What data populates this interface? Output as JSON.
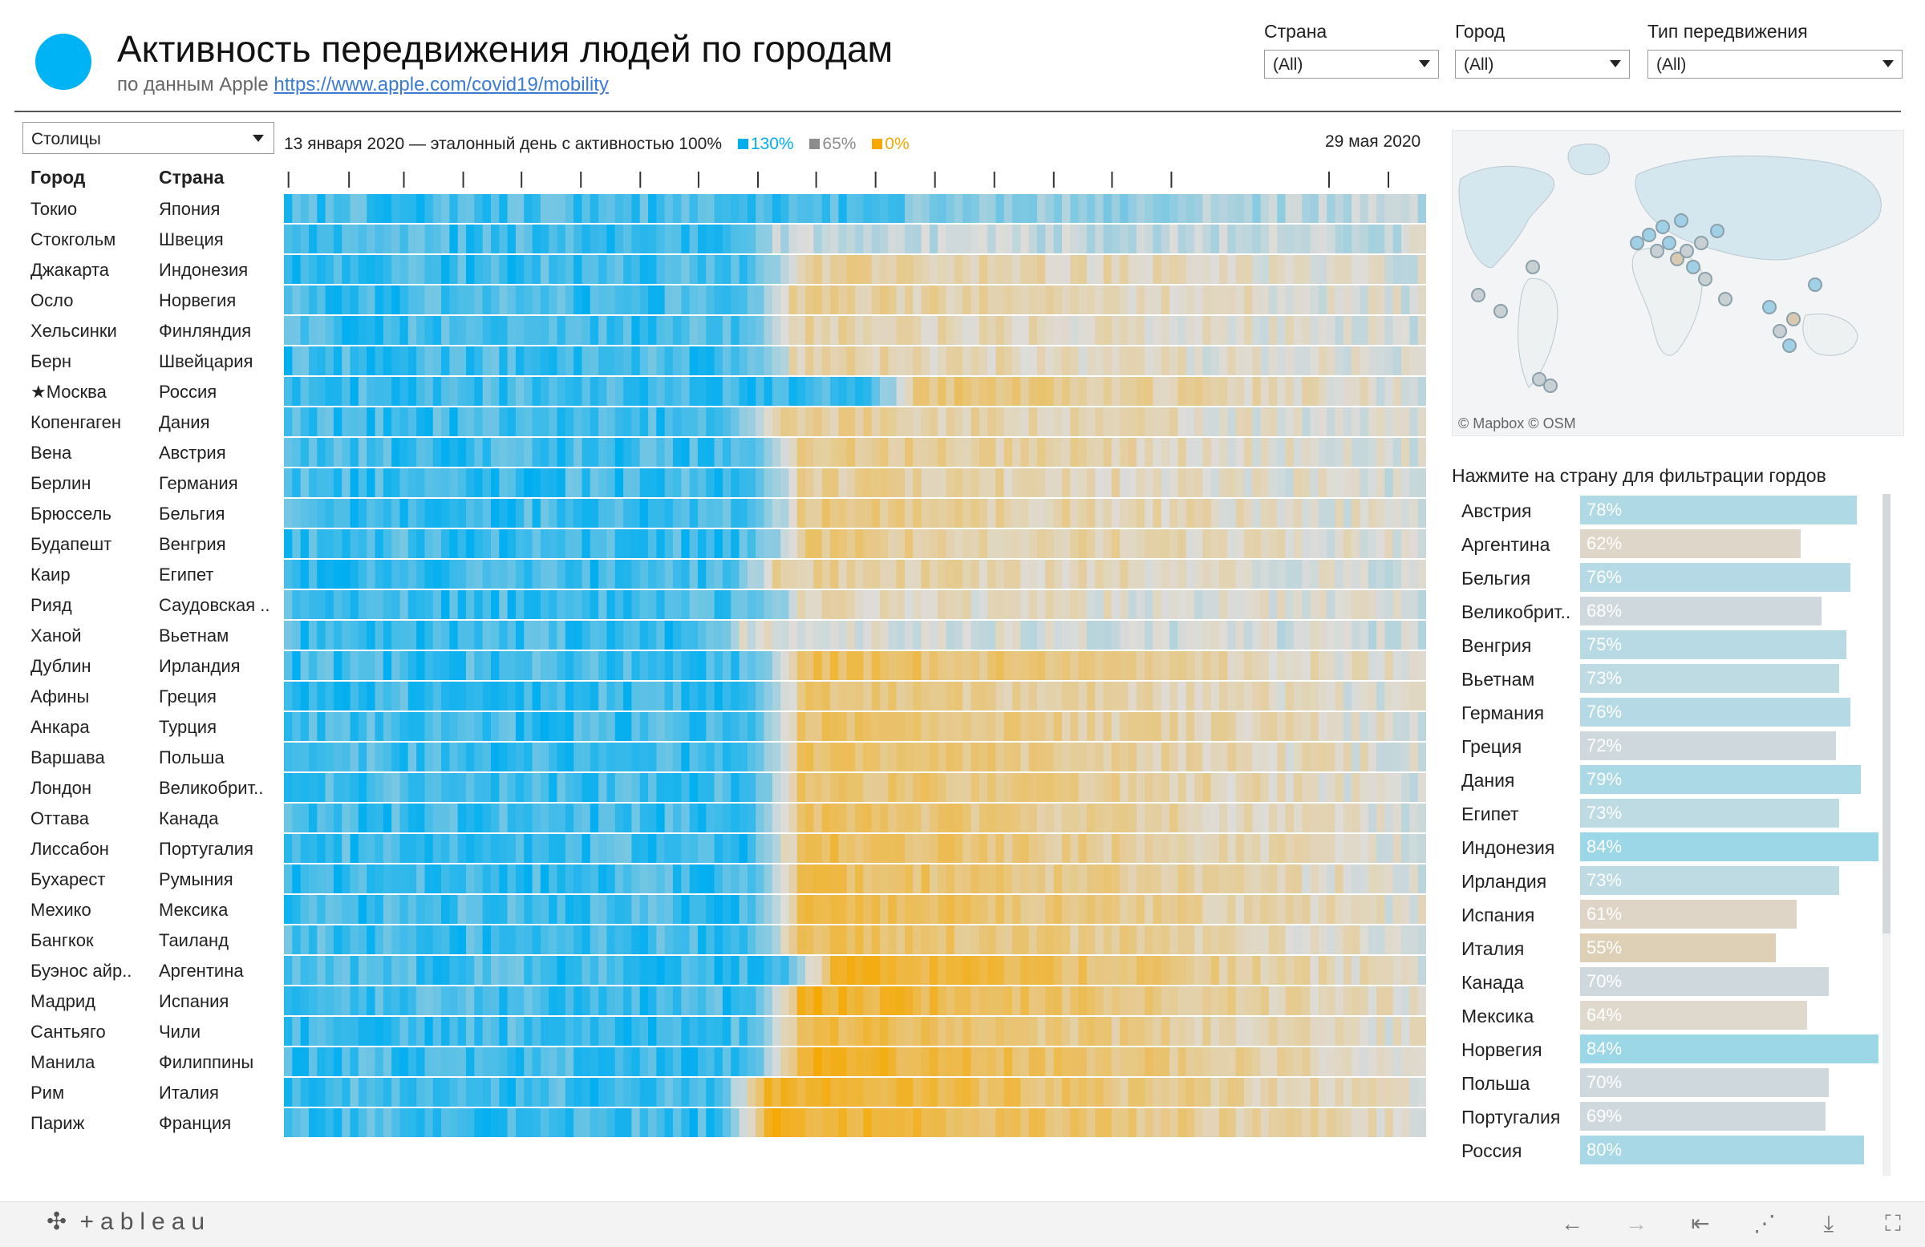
{
  "header": {
    "title": "Активность передвижения людей по городам",
    "subtitle_prefix": "по данным Apple",
    "subtitle_link": "https://www.apple.com/covid19/mobility"
  },
  "filters": [
    {
      "label": "Страна",
      "value": "(All)"
    },
    {
      "label": "Город",
      "value": "(All)"
    },
    {
      "label": "Тип передвижения",
      "value": "(All)"
    }
  ],
  "group_select": {
    "value": "Столицы"
  },
  "columns": {
    "city": "Город",
    "country": "Страна"
  },
  "legend": {
    "caption": "13 января 2020 — эталонный день с активностью 100%",
    "items": [
      {
        "label": "130%",
        "color": "#00aef0"
      },
      {
        "label": "65%",
        "color": "#8c8c8c"
      },
      {
        "label": "0%",
        "color": "#f5a800"
      }
    ]
  },
  "end_date": "29 мая 2020",
  "colors": {
    "blue": "#00aef0",
    "neutral": "#dcdcdc",
    "orange": "#f5a800",
    "accent": "#00b3f5"
  },
  "chart_data": {
    "type": "heatmap",
    "title": "Активность передвижения людей по городам",
    "x_start": "13 января 2020",
    "x_end": "29 мая 2020",
    "x_range": [
      "2020-01-13",
      "2020-05-29"
    ],
    "scale": {
      "min": 0,
      "mid": 65,
      "max": 130,
      "unit": "%"
    },
    "rows": [
      {
        "city": "Токио",
        "country": "Япония",
        "drop": 0.54,
        "low": 95
      },
      {
        "city": "Стокгольм",
        "country": "Швеция",
        "drop": 0.43,
        "low": 75
      },
      {
        "city": "Джакарта",
        "country": "Индонезия",
        "drop": 0.45,
        "low": 45
      },
      {
        "city": "Осло",
        "country": "Норвегия",
        "drop": 0.44,
        "low": 45
      },
      {
        "city": "Хельсинки",
        "country": "Финляндия",
        "drop": 0.44,
        "low": 50
      },
      {
        "city": "Берн",
        "country": "Швейцария",
        "drop": 0.44,
        "low": 50
      },
      {
        "city": "★Москва",
        "country": "Россия",
        "drop": 0.55,
        "low": 35
      },
      {
        "city": "Копенгаген",
        "country": "Дания",
        "drop": 0.43,
        "low": 45
      },
      {
        "city": "Вена",
        "country": "Австрия",
        "drop": 0.45,
        "low": 40
      },
      {
        "city": "Берлин",
        "country": "Германия",
        "drop": 0.45,
        "low": 45
      },
      {
        "city": "Брюссель",
        "country": "Бельгия",
        "drop": 0.45,
        "low": 40
      },
      {
        "city": "Будапешт",
        "country": "Венгрия",
        "drop": 0.45,
        "low": 40
      },
      {
        "city": "Каир",
        "country": "Египет",
        "drop": 0.43,
        "low": 45
      },
      {
        "city": "Рияд",
        "country": "Саудовская ..",
        "drop": 0.45,
        "low": 55
      },
      {
        "city": "Ханой",
        "country": "Вьетнам",
        "drop": 0.4,
        "low": 65
      },
      {
        "city": "Дублин",
        "country": "Ирландия",
        "drop": 0.45,
        "low": 25
      },
      {
        "city": "Афины",
        "country": "Греция",
        "drop": 0.45,
        "low": 35
      },
      {
        "city": "Анкара",
        "country": "Турция",
        "drop": 0.45,
        "low": 30
      },
      {
        "city": "Варшава",
        "country": "Польша",
        "drop": 0.45,
        "low": 30
      },
      {
        "city": "Лондон",
        "country": "Великобрит..",
        "drop": 0.45,
        "low": 30
      },
      {
        "city": "Оттава",
        "country": "Канада",
        "drop": 0.45,
        "low": 30
      },
      {
        "city": "Лиссабон",
        "country": "Португалия",
        "drop": 0.45,
        "low": 25
      },
      {
        "city": "Бухарест",
        "country": "Румыния",
        "drop": 0.45,
        "low": 25
      },
      {
        "city": "Мехико",
        "country": "Мексика",
        "drop": 0.45,
        "low": 20
      },
      {
        "city": "Бангкок",
        "country": "Таиланд",
        "drop": 0.45,
        "low": 25
      },
      {
        "city": "Буэнос айр..",
        "country": "Аргентина",
        "drop": 0.48,
        "low": 10
      },
      {
        "city": "Мадрид",
        "country": "Испания",
        "drop": 0.45,
        "low": 10
      },
      {
        "city": "Сантьяго",
        "country": "Чили",
        "drop": 0.45,
        "low": 20
      },
      {
        "city": "Манила",
        "country": "Филиппины",
        "drop": 0.45,
        "low": 10
      },
      {
        "city": "Рим",
        "country": "Италия",
        "drop": 0.42,
        "low": 10
      },
      {
        "city": "Париж",
        "country": "Франция",
        "drop": 0.42,
        "low": 10
      }
    ]
  },
  "map": {
    "attribution": "© Mapbox  © OSM"
  },
  "country_bars": {
    "title": "Нажмите на страну для фильтрации гордов",
    "items": [
      {
        "country": "Австрия",
        "pct": "78%",
        "value": 78
      },
      {
        "country": "Аргентина",
        "pct": "62%",
        "value": 62
      },
      {
        "country": "Бельгия",
        "pct": "76%",
        "value": 76
      },
      {
        "country": "Великобрит..",
        "pct": "68%",
        "value": 68
      },
      {
        "country": "Венгрия",
        "pct": "75%",
        "value": 75
      },
      {
        "country": "Вьетнам",
        "pct": "73%",
        "value": 73
      },
      {
        "country": "Германия",
        "pct": "76%",
        "value": 76
      },
      {
        "country": "Греция",
        "pct": "72%",
        "value": 72
      },
      {
        "country": "Дания",
        "pct": "79%",
        "value": 79
      },
      {
        "country": "Египет",
        "pct": "73%",
        "value": 73
      },
      {
        "country": "Индонезия",
        "pct": "84%",
        "value": 84
      },
      {
        "country": "Ирландия",
        "pct": "73%",
        "value": 73
      },
      {
        "country": "Испания",
        "pct": "61%",
        "value": 61
      },
      {
        "country": "Италия",
        "pct": "55%",
        "value": 55
      },
      {
        "country": "Канада",
        "pct": "70%",
        "value": 70
      },
      {
        "country": "Мексика",
        "pct": "64%",
        "value": 64
      },
      {
        "country": "Норвегия",
        "pct": "84%",
        "value": 84
      },
      {
        "country": "Польша",
        "pct": "70%",
        "value": 70
      },
      {
        "country": "Португалия",
        "pct": "69%",
        "value": 69
      },
      {
        "country": "Россия",
        "pct": "80%",
        "value": 80
      }
    ]
  },
  "footer": {
    "brand": "+ableau"
  }
}
